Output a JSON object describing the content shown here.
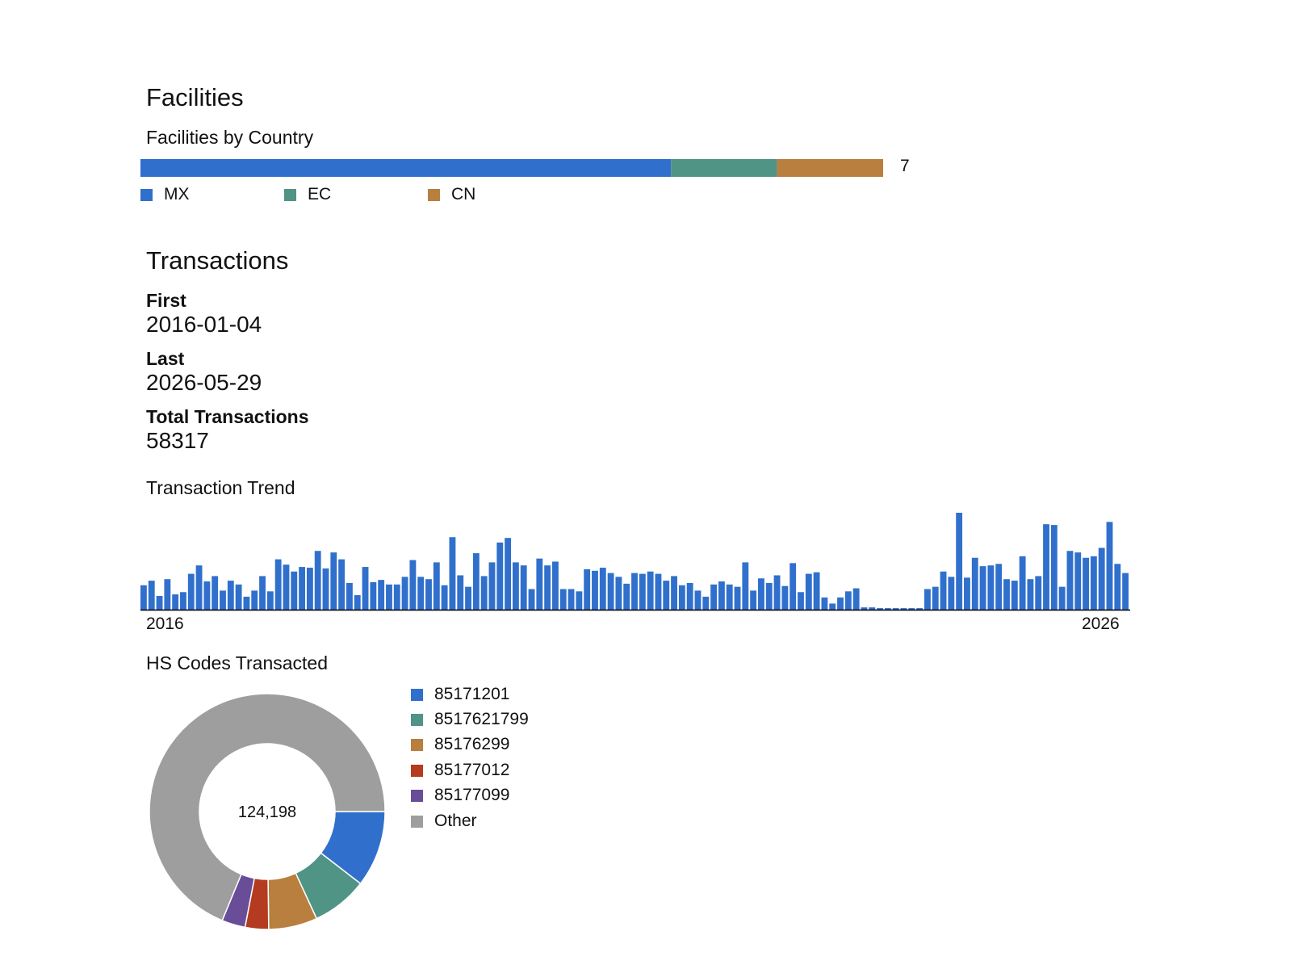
{
  "facilities": {
    "heading": "Facilities",
    "subheading": "Facilities by Country",
    "total_label": "7",
    "chart_data": {
      "type": "bar",
      "orientation": "stacked-horizontal",
      "categories": [
        "MX",
        "EC",
        "CN"
      ],
      "values": [
        5,
        1,
        1
      ],
      "colors": [
        "#3070CC",
        "#4F9484",
        "#B87F3E"
      ]
    }
  },
  "transactions": {
    "heading": "Transactions",
    "first_label": "First",
    "first_value": "2016-01-04",
    "last_label": "Last",
    "last_value": "2026-05-29",
    "total_label": "Total Transactions",
    "total_value": "58317"
  },
  "trend": {
    "title": "Transaction Trend",
    "x_start_label": "2016",
    "x_end_label": "2026",
    "color": "#3070CC",
    "chart_data": {
      "type": "bar",
      "x_range": [
        "2016-01",
        "2026-05"
      ],
      "values": [
        32,
        38,
        18,
        40,
        20,
        23,
        47,
        58,
        37,
        44,
        25,
        38,
        33,
        17,
        25,
        44,
        24,
        66,
        59,
        50,
        56,
        55,
        77,
        54,
        75,
        66,
        35,
        19,
        56,
        36,
        39,
        33,
        33,
        43,
        65,
        43,
        40,
        62,
        32,
        95,
        45,
        30,
        74,
        44,
        62,
        88,
        94,
        62,
        58,
        27,
        67,
        58,
        63,
        27,
        27,
        24,
        53,
        51,
        55,
        48,
        43,
        34,
        48,
        47,
        50,
        47,
        38,
        44,
        32,
        35,
        25,
        17,
        33,
        37,
        33,
        30,
        62,
        25,
        41,
        35,
        45,
        31,
        61,
        23,
        47,
        49,
        16,
        8,
        16,
        24,
        28,
        3,
        3,
        2,
        2,
        2,
        2,
        2,
        2,
        27,
        30,
        50,
        43,
        127,
        42,
        68,
        57,
        58,
        60,
        40,
        38,
        70,
        40,
        44,
        112,
        111,
        30,
        77,
        75,
        68,
        70,
        81,
        115,
        60,
        48
      ],
      "ylim": [
        0,
        127
      ]
    }
  },
  "hs_codes": {
    "title": "HS Codes Transacted",
    "center_label": "124,198",
    "chart_data": {
      "type": "pie",
      "labels": [
        "85171201",
        "8517621799",
        "85176299",
        "85177012",
        "85177099",
        "Other"
      ],
      "values": [
        13000,
        9500,
        8300,
        4000,
        4000,
        85398
      ],
      "colors": [
        "#3070CC",
        "#4F9484",
        "#B87F3E",
        "#B43B1F",
        "#6A4D98",
        "#9E9E9E"
      ]
    }
  }
}
